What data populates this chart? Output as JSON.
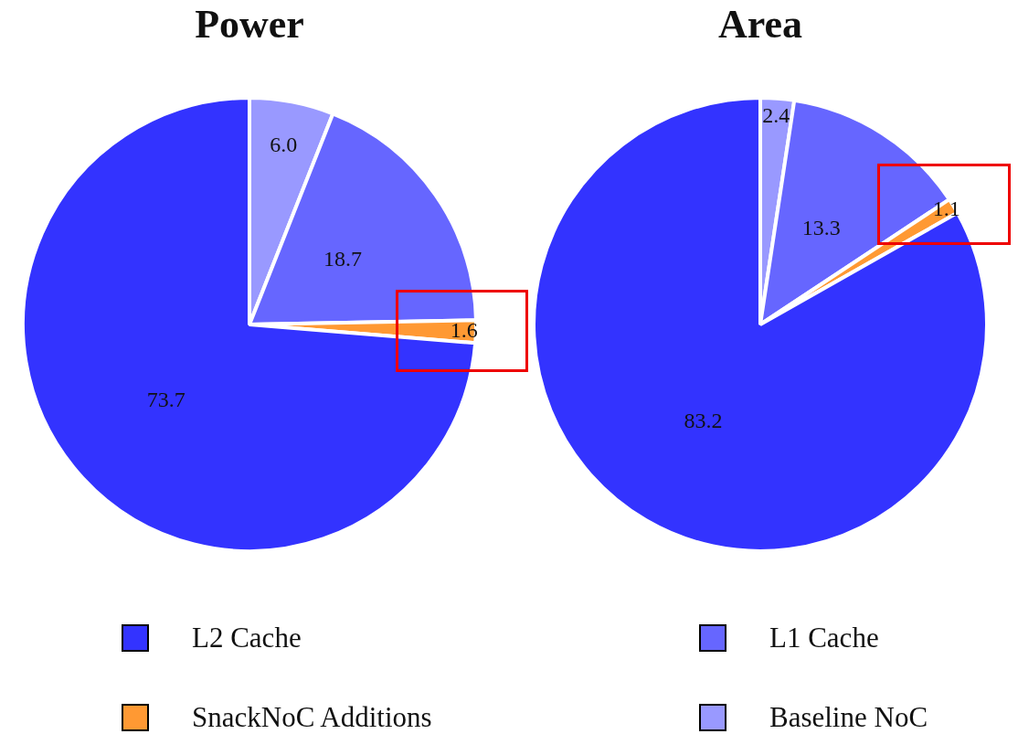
{
  "chart_data": {
    "type": "pie",
    "categories": [
      "Baseline NoC",
      "L1 Cache",
      "SnackNoC Additions",
      "L2 Cache"
    ],
    "colors": [
      "#9999ff",
      "#6666ff",
      "#ff9933",
      "#3333ff"
    ],
    "legend": "bottom",
    "series": [
      {
        "name": "Power",
        "values": [
          6.0,
          18.7,
          1.6,
          73.7
        ],
        "value_labels": [
          "6.0",
          "18.7",
          "1.6",
          "73.7"
        ]
      },
      {
        "name": "Area",
        "values": [
          2.4,
          13.3,
          1.1,
          83.2
        ],
        "value_labels": [
          "2.4",
          "13.3",
          "1.1",
          "83.2"
        ]
      }
    ]
  }
}
